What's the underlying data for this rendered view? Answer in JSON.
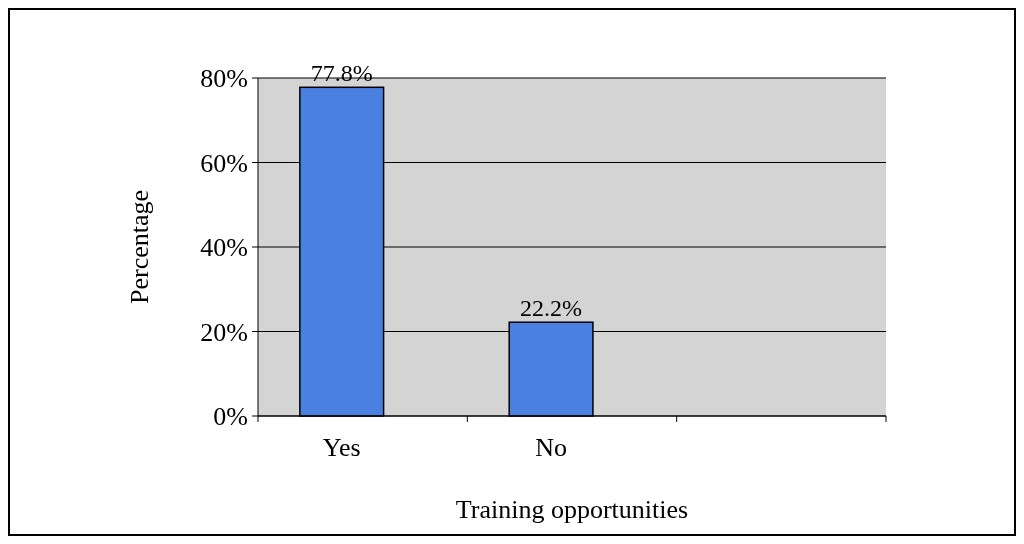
{
  "chart_data": {
    "type": "bar",
    "xlabel": "Training opportunities",
    "ylabel": "Percentage",
    "categories": [
      "Yes",
      "No",
      null
    ],
    "values": [
      77.8,
      22.2,
      null
    ],
    "value_labels": [
      "77.8%",
      "22.2%",
      null
    ],
    "color": "#4a80e0",
    "ylim": [
      0,
      80
    ],
    "yticks": [
      {
        "value": 0,
        "label": "0%"
      },
      {
        "value": 20,
        "label": "20%"
      },
      {
        "value": 40,
        "label": "40%"
      },
      {
        "value": 60,
        "label": "60%"
      },
      {
        "value": 80,
        "label": "80%"
      }
    ],
    "grid": true
  }
}
